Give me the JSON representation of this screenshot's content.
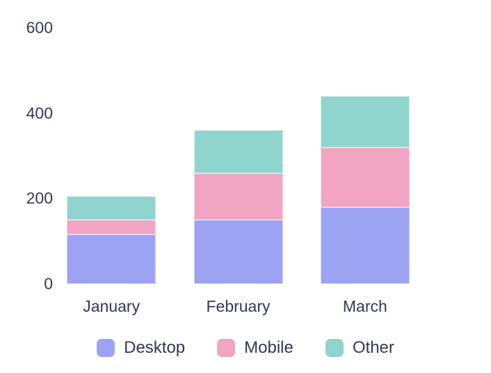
{
  "chart_data": {
    "type": "bar",
    "stacked": true,
    "title": "",
    "xlabel": "",
    "ylabel": "",
    "categories": [
      "January",
      "February",
      "March"
    ],
    "series": [
      {
        "name": "Desktop",
        "color": "#9ba3f2",
        "values": [
          115,
          150,
          180
        ]
      },
      {
        "name": "Mobile",
        "color": "#f2a4c3",
        "values": [
          35,
          110,
          140
        ]
      },
      {
        "name": "Other",
        "color": "#90d5cd",
        "values": [
          55,
          100,
          120
        ]
      }
    ],
    "y_axis": {
      "min": 0,
      "max": 600,
      "ticks": [
        0,
        200,
        400,
        600
      ]
    },
    "grid": false,
    "axis_lines": false,
    "legend_position": "bottom",
    "text_color": "#2e3a54",
    "background_color": "#ffffff"
  }
}
